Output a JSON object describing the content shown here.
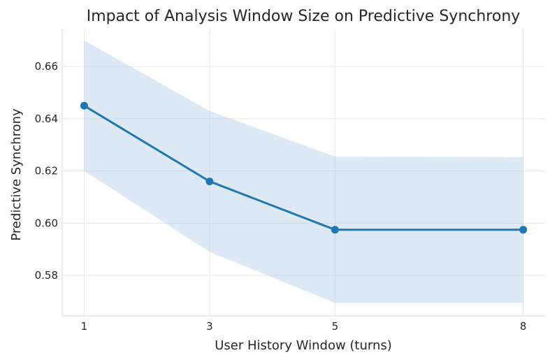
{
  "chart_data": {
    "type": "line",
    "title": "Impact of Analysis Window Size on Predictive Synchrony",
    "xlabel": "User History Window (turns)",
    "ylabel": "Predictive Synchrony",
    "x": [
      1,
      3,
      5,
      8
    ],
    "x_ticks": [
      "1",
      "3",
      "5",
      "8"
    ],
    "y_ticks": [
      "0.58",
      "0.60",
      "0.62",
      "0.64",
      "0.66"
    ],
    "y_tick_values": [
      0.58,
      0.6,
      0.62,
      0.64,
      0.66
    ],
    "xlim": [
      0.65,
      8.35
    ],
    "ylim": [
      0.5645,
      0.6745
    ],
    "grid": true,
    "series": [
      {
        "values": [
          0.645,
          0.616,
          0.5975,
          0.5975
        ],
        "lower": [
          0.62,
          0.589,
          0.5695,
          0.5695
        ],
        "upper": [
          0.67,
          0.643,
          0.6255,
          0.6253
        ]
      }
    ],
    "colors": {
      "line": "#1f77b4",
      "band": "#a9c8e6",
      "grid": "#e6e6e6",
      "spine": "#d9d9d9"
    }
  }
}
